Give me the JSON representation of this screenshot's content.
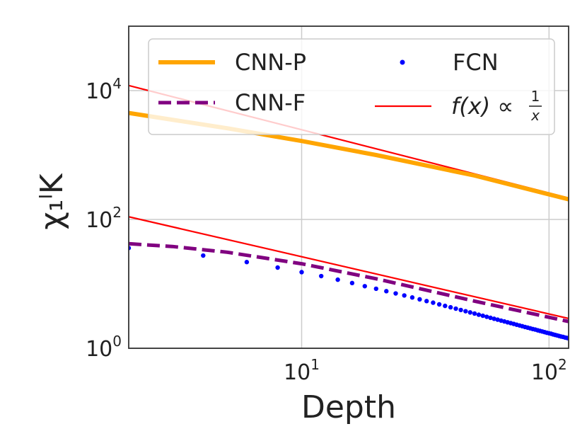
{
  "chart_data": {
    "type": "line",
    "title": "",
    "xlabel": "Depth",
    "ylabel": "χ₁ˡK",
    "xscale": "log",
    "yscale": "log",
    "xlim": [
      2,
      120
    ],
    "ylim": [
      1,
      100000
    ],
    "grid": true,
    "x_ticks": [
      {
        "base": "10",
        "exp": "1",
        "value": 10
      },
      {
        "base": "10",
        "exp": "2",
        "value": 100
      }
    ],
    "y_ticks": [
      {
        "base": "10",
        "exp": "0",
        "value": 1
      },
      {
        "base": "10",
        "exp": "2",
        "value": 100
      },
      {
        "base": "10",
        "exp": "4",
        "value": 10000
      }
    ],
    "legend_position": "top",
    "series": [
      {
        "name": "CNN-P",
        "style": "solid-thick",
        "color": "#FFA500",
        "x": [
          2,
          5,
          10,
          20,
          50,
          120
        ],
        "y": [
          4500,
          2600,
          1650,
          1000,
          480,
          205
        ]
      },
      {
        "name": "CNN-F",
        "style": "dashed",
        "color": "#800080",
        "x": [
          2,
          3,
          5,
          10,
          20,
          50,
          120
        ],
        "y": [
          42,
          38,
          31,
          20.5,
          12,
          5.4,
          2.6
        ]
      },
      {
        "name": "FCN",
        "style": "dots",
        "color": "#0000FF",
        "x": [
          2,
          4,
          6,
          8,
          10,
          12,
          14,
          16,
          18,
          20,
          22,
          24,
          26,
          28,
          30,
          32,
          34,
          36,
          38,
          40,
          42,
          44,
          46,
          48,
          50,
          52,
          54,
          56,
          58,
          60,
          62,
          64,
          66,
          68,
          70,
          72,
          74,
          76,
          78,
          80,
          82,
          84,
          86,
          88,
          90,
          92,
          94,
          96,
          98,
          100,
          102,
          104,
          106,
          108,
          110,
          112,
          114,
          116,
          118,
          120
        ],
        "y": [
          36,
          27.5,
          21.8,
          17.9,
          15.2,
          13.2,
          11.6,
          10.3,
          9.2,
          8.4,
          7.7,
          7.1,
          6.6,
          6.15,
          5.75,
          5.4,
          5.1,
          4.8,
          4.55,
          4.33,
          4.12,
          3.93,
          3.76,
          3.6,
          3.46,
          3.32,
          3.2,
          3.08,
          2.97,
          2.87,
          2.78,
          2.69,
          2.61,
          2.53,
          2.46,
          2.39,
          2.32,
          2.26,
          2.2,
          2.14,
          2.09,
          2.04,
          1.99,
          1.95,
          1.9,
          1.86,
          1.82,
          1.78,
          1.74,
          1.71,
          1.68,
          1.64,
          1.61,
          1.58,
          1.55,
          1.52,
          1.5,
          1.47,
          1.45,
          1.42
        ]
      },
      {
        "name": "f(x) ∝ 1/x (upper)",
        "legend": false,
        "style": "solid-thin",
        "color": "#FF0000",
        "x": [
          2,
          120
        ],
        "y": [
          12000,
          215
        ]
      },
      {
        "name": "f(x) ∝ 1/x (lower)",
        "legend": false,
        "style": "solid-thin",
        "color": "#FF0000",
        "x": [
          2,
          120
        ],
        "y": [
          110,
          2.9
        ]
      }
    ],
    "legend": [
      {
        "label": "CNN-P",
        "style": "solid-thick",
        "color": "#FFA500"
      },
      {
        "label": "CNN-F",
        "style": "dashed",
        "color": "#800080"
      },
      {
        "label": "FCN",
        "style": "dots",
        "color": "#0000FF"
      },
      {
        "label": "f(x) ∝ 1/x",
        "label_main": "f(x) ∝ ",
        "label_num": "1",
        "label_den": "x",
        "style": "solid-thin",
        "color": "#FF0000"
      }
    ]
  }
}
